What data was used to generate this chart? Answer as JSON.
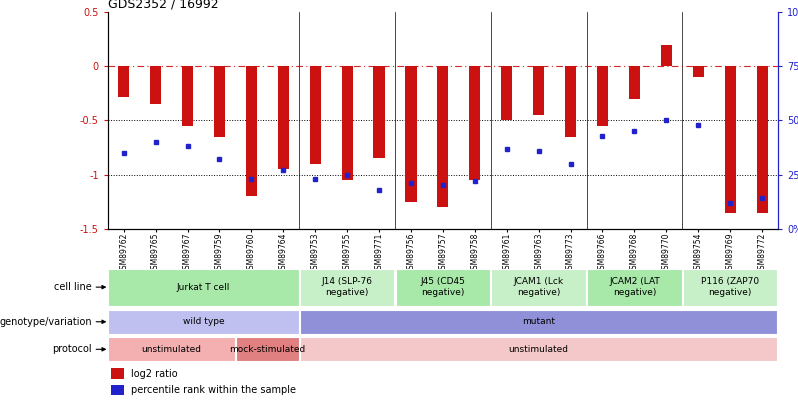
{
  "title": "GDS2352 / 16992",
  "samples": [
    "GSM89762",
    "GSM89765",
    "GSM89767",
    "GSM89759",
    "GSM89760",
    "GSM89764",
    "GSM89753",
    "GSM89755",
    "GSM89771",
    "GSM89756",
    "GSM89757",
    "GSM89758",
    "GSM89761",
    "GSM89763",
    "GSM89773",
    "GSM89766",
    "GSM89768",
    "GSM89770",
    "GSM89754",
    "GSM89769",
    "GSM89772"
  ],
  "log2_ratio": [
    -0.28,
    -0.35,
    -0.55,
    -0.65,
    -1.2,
    -0.95,
    -0.9,
    -1.05,
    -0.85,
    -1.25,
    -1.3,
    -1.05,
    -0.5,
    -0.45,
    -0.65,
    -0.55,
    -0.3,
    0.2,
    -0.1,
    -1.35,
    -1.35
  ],
  "pct_rank": [
    35,
    40,
    38,
    32,
    23,
    27,
    23,
    25,
    18,
    21,
    20,
    22,
    37,
    36,
    30,
    43,
    45,
    50,
    48,
    12,
    14
  ],
  "cell_line_groups": [
    {
      "label": "Jurkat T cell",
      "start": 0,
      "end": 6,
      "color": "#a8e8a8"
    },
    {
      "label": "J14 (SLP-76\nnegative)",
      "start": 6,
      "end": 9,
      "color": "#c8f0c8"
    },
    {
      "label": "J45 (CD45\nnegative)",
      "start": 9,
      "end": 12,
      "color": "#a8e8a8"
    },
    {
      "label": "JCAM1 (Lck\nnegative)",
      "start": 12,
      "end": 15,
      "color": "#c8f0c8"
    },
    {
      "label": "JCAM2 (LAT\nnegative)",
      "start": 15,
      "end": 18,
      "color": "#a8e8a8"
    },
    {
      "label": "P116 (ZAP70\nnegative)",
      "start": 18,
      "end": 21,
      "color": "#c8f0c8"
    }
  ],
  "genotype_groups": [
    {
      "label": "wild type",
      "start": 0,
      "end": 6,
      "color": "#c0c0f0"
    },
    {
      "label": "mutant",
      "start": 6,
      "end": 21,
      "color": "#9090d8"
    }
  ],
  "protocol_groups": [
    {
      "label": "unstimulated",
      "start": 0,
      "end": 4,
      "color": "#f4b0b0"
    },
    {
      "label": "mock-stimulated",
      "start": 4,
      "end": 6,
      "color": "#e08080"
    },
    {
      "label": "unstimulated",
      "start": 6,
      "end": 21,
      "color": "#f4c8c8"
    }
  ],
  "bar_color": "#cc1111",
  "dot_color": "#2222cc",
  "ymin": -1.5,
  "ymax": 0.5,
  "y2min": 0,
  "y2max": 100,
  "hline_y": 0,
  "dotted_lines": [
    -0.5,
    -1.0
  ],
  "group_seps": [
    6,
    9,
    12,
    15,
    18
  ],
  "left_labels": [
    "cell line",
    "genotype/variation",
    "protocol"
  ],
  "legend_items": [
    {
      "color": "#cc1111",
      "label": "log2 ratio"
    },
    {
      "color": "#2222cc",
      "label": "percentile rank within the sample"
    }
  ]
}
